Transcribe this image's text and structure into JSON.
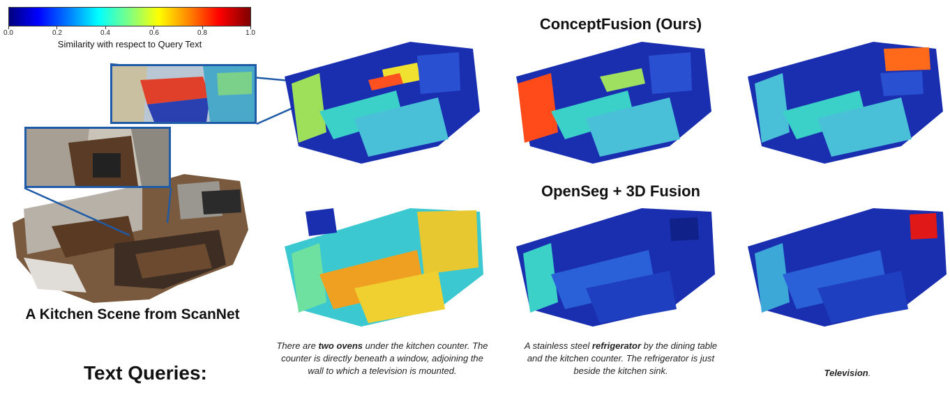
{
  "colorbar": {
    "ticks": [
      "0.0",
      "0.2",
      "0.4",
      "0.6",
      "0.8",
      "1.0"
    ],
    "label": "Similarity with respect to Query Text"
  },
  "titles": {
    "ours": "ConceptFusion (Ours)",
    "openseg": "OpenSeg + 3D Fusion"
  },
  "scene_caption": "A Kitchen Scene from ScanNet",
  "text_queries_label": "Text Queries:",
  "queries": [
    {
      "pre": "There are ",
      "bold": "two ovens",
      "post": " under the kitchen counter. The counter is directly beneath a window, adjoining the wall to which a television is mounted."
    },
    {
      "pre": "A stainless steel ",
      "bold": "refrigerator",
      "post": " by the dining table and the kitchen counter. The refrigerator is just beside the kitchen sink."
    },
    {
      "pre": "",
      "bold": "Television",
      "post": "."
    }
  ],
  "colors": {
    "inset_border": "#1f5aa6",
    "low": "#1a2fb0",
    "mid": "#3cd1c8",
    "high": "#ff3a1a"
  }
}
